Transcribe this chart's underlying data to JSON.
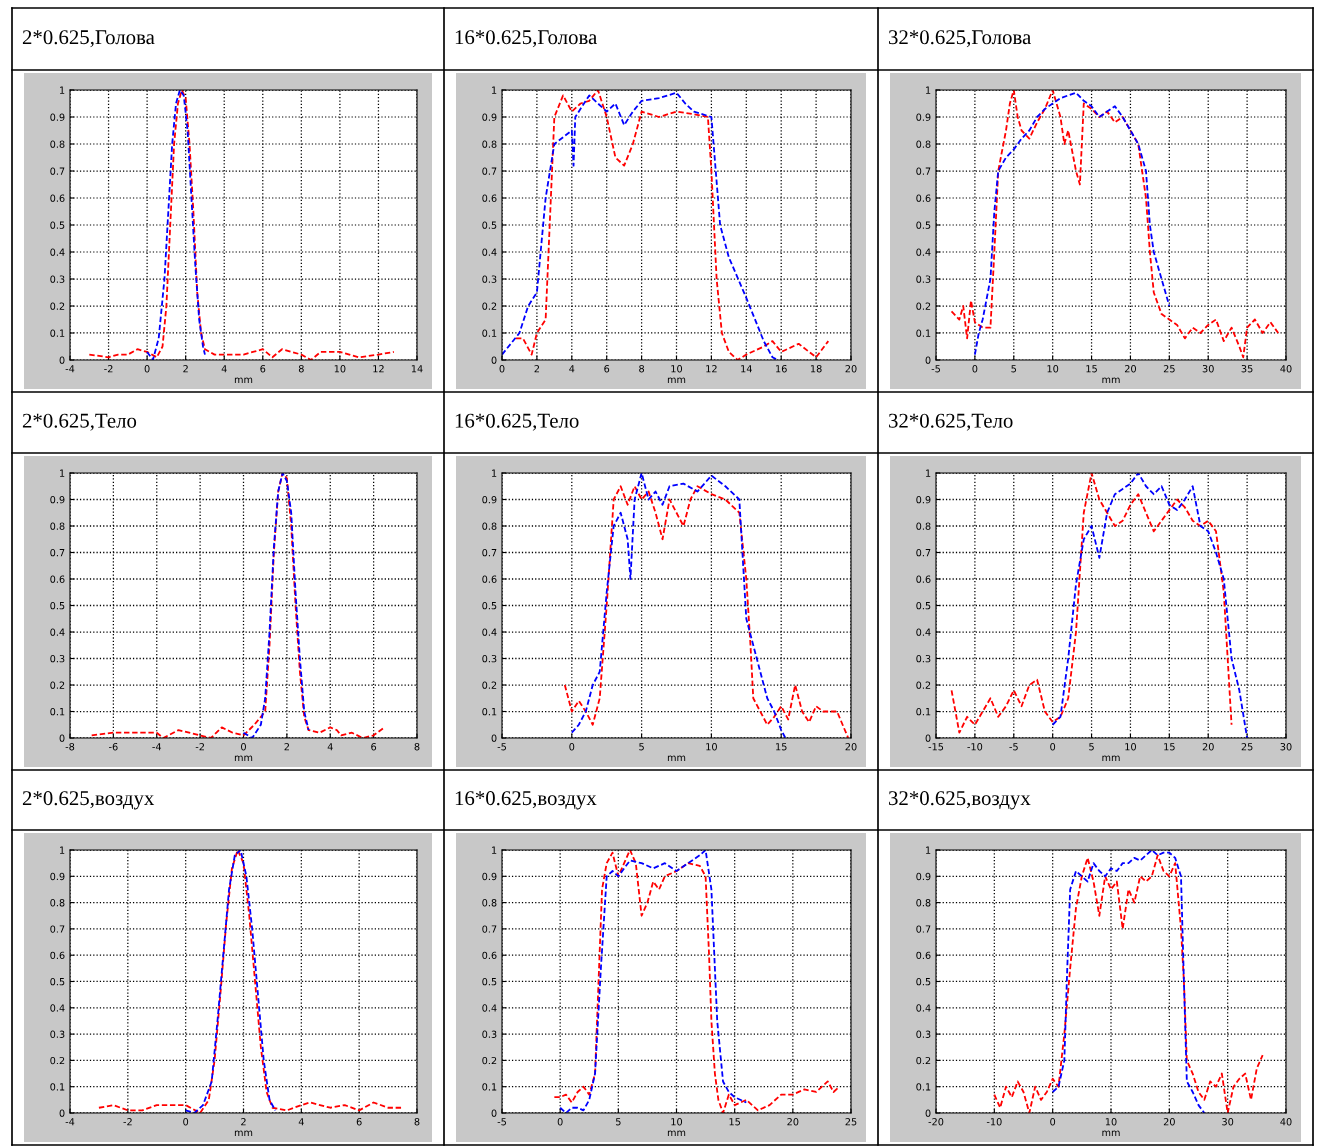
{
  "chart_data": [
    {
      "type": "line",
      "title": "2*0.625,Голова",
      "xlabel": "mm",
      "xlim": [
        -4,
        14
      ],
      "xticks": [
        -4,
        -2,
        0,
        2,
        4,
        6,
        8,
        10,
        12,
        14
      ],
      "ylim": [
        0,
        1
      ],
      "yticks": [
        0,
        0.1,
        0.2,
        0.3,
        0.4,
        0.5,
        0.6,
        0.7,
        0.8,
        0.9,
        1
      ],
      "grid": true,
      "line_style": "dashed",
      "series": [
        {
          "color": "#ff0000",
          "x": [
            -3,
            -2,
            -1.5,
            -1,
            -0.5,
            0,
            0.5,
            0.8,
            1,
            1.2,
            1.4,
            1.6,
            1.8,
            2,
            2.2,
            2.4,
            2.6,
            2.8,
            3,
            3.5,
            4,
            5,
            6,
            6.5,
            7,
            8,
            8.5,
            9,
            10,
            11,
            12,
            12.8
          ],
          "values": [
            0.02,
            0.01,
            0.02,
            0.02,
            0.04,
            0.03,
            0.01,
            0.05,
            0.2,
            0.5,
            0.8,
            0.95,
            1,
            0.97,
            0.8,
            0.55,
            0.25,
            0.1,
            0.04,
            0.02,
            0.02,
            0.02,
            0.04,
            0.01,
            0.04,
            0.02,
            0,
            0.03,
            0.03,
            0.01,
            0.02,
            0.03
          ]
        },
        {
          "color": "#0000ff",
          "x": [
            0,
            0.3,
            0.6,
            0.9,
            1.1,
            1.3,
            1.5,
            1.7,
            1.9,
            2.1,
            2.3,
            2.5,
            2.7,
            2.9,
            3
          ],
          "values": [
            0.03,
            0,
            0.08,
            0.3,
            0.55,
            0.8,
            0.95,
            1,
            0.98,
            0.85,
            0.6,
            0.35,
            0.15,
            0.05,
            0.02
          ]
        }
      ]
    },
    {
      "type": "line",
      "title": "16*0.625,Голова",
      "xlabel": "mm",
      "xlim": [
        0,
        20
      ],
      "xticks": [
        0,
        2,
        4,
        6,
        8,
        10,
        12,
        14,
        16,
        18,
        20
      ],
      "ylim": [
        0,
        1
      ],
      "yticks": [
        0,
        0.1,
        0.2,
        0.3,
        0.4,
        0.5,
        0.6,
        0.7,
        0.8,
        0.9,
        1
      ],
      "grid": true,
      "line_style": "dashed",
      "series": [
        {
          "color": "#ff0000",
          "x": [
            0.8,
            1.2,
            1.7,
            2,
            2.5,
            3,
            3.5,
            4,
            4.5,
            5,
            5.5,
            6,
            6.5,
            7,
            7.5,
            8,
            9,
            10,
            11,
            11.8,
            12,
            12.3,
            12.6,
            13,
            13.5,
            14,
            15,
            15.5,
            16,
            17,
            18,
            18.7
          ],
          "values": [
            0.08,
            0.08,
            0.02,
            0.1,
            0.15,
            0.9,
            0.98,
            0.92,
            0.95,
            0.96,
            1,
            0.9,
            0.75,
            0.72,
            0.8,
            0.92,
            0.9,
            0.92,
            0.91,
            0.9,
            0.7,
            0.3,
            0.1,
            0.03,
            0,
            0.02,
            0.05,
            0.07,
            0.03,
            0.06,
            0.01,
            0.07
          ]
        },
        {
          "color": "#0000ff",
          "x": [
            0,
            0.5,
            1,
            1.5,
            2,
            2.5,
            3,
            4,
            4.1,
            4.2,
            5,
            6,
            6.5,
            7,
            7.5,
            8,
            9,
            10,
            10.5,
            11,
            12,
            12.5,
            13,
            14,
            15,
            15.5,
            15.8
          ],
          "values": [
            0.02,
            0.06,
            0.1,
            0.2,
            0.25,
            0.6,
            0.8,
            0.85,
            0.72,
            0.9,
            0.98,
            0.92,
            0.95,
            0.87,
            0.92,
            0.96,
            0.97,
            0.99,
            0.95,
            0.92,
            0.9,
            0.5,
            0.38,
            0.23,
            0.07,
            0.01,
            0
          ]
        }
      ]
    },
    {
      "type": "line",
      "title": "32*0.625,Голова",
      "xlabel": "mm",
      "xlim": [
        -5,
        40
      ],
      "xticks": [
        -5,
        0,
        5,
        10,
        15,
        20,
        25,
        30,
        35,
        40
      ],
      "ylim": [
        0,
        1
      ],
      "yticks": [
        0,
        0.1,
        0.2,
        0.3,
        0.4,
        0.5,
        0.6,
        0.7,
        0.8,
        0.9,
        1
      ],
      "grid": true,
      "line_style": "dashed",
      "series": [
        {
          "color": "#ff0000",
          "x": [
            -3,
            -2,
            -1.5,
            -1,
            -0.5,
            0,
            1,
            2,
            2.5,
            3,
            4,
            4.5,
            5,
            5.5,
            6,
            7,
            8,
            9,
            10,
            11,
            11.5,
            12,
            13,
            13.5,
            14,
            15,
            16,
            17,
            18,
            19,
            20,
            21,
            22,
            22.5,
            23,
            24,
            25,
            26,
            27,
            28,
            29,
            30,
            31,
            32,
            33,
            34,
            34.5,
            35,
            36,
            37,
            38,
            39
          ],
          "values": [
            0.18,
            0.15,
            0.2,
            0.08,
            0.22,
            0.14,
            0.12,
            0.12,
            0.4,
            0.7,
            0.85,
            0.95,
            1,
            0.9,
            0.85,
            0.82,
            0.88,
            0.93,
            1,
            0.9,
            0.8,
            0.85,
            0.7,
            0.65,
            0.95,
            0.93,
            0.9,
            0.92,
            0.88,
            0.9,
            0.85,
            0.8,
            0.6,
            0.4,
            0.25,
            0.17,
            0.15,
            0.13,
            0.08,
            0.12,
            0.1,
            0.13,
            0.15,
            0.07,
            0.12,
            0.05,
            0.01,
            0.12,
            0.15,
            0.1,
            0.14,
            0.1
          ]
        },
        {
          "color": "#0000ff",
          "x": [
            0,
            0.5,
            1,
            2,
            2.5,
            3,
            4,
            5,
            6,
            7,
            8,
            9,
            10,
            11,
            12,
            13,
            14,
            15,
            16,
            17,
            18,
            19,
            20,
            21,
            22,
            22.5,
            23,
            24,
            25
          ],
          "values": [
            0.02,
            0.1,
            0.15,
            0.3,
            0.55,
            0.7,
            0.75,
            0.78,
            0.82,
            0.85,
            0.9,
            0.93,
            0.95,
            0.97,
            0.98,
            0.99,
            0.96,
            0.94,
            0.9,
            0.92,
            0.94,
            0.9,
            0.85,
            0.8,
            0.7,
            0.5,
            0.4,
            0.3,
            0.2
          ]
        }
      ]
    },
    {
      "type": "line",
      "title": "2*0.625,Тело",
      "xlabel": "mm",
      "xlim": [
        -8,
        8
      ],
      "xticks": [
        -8,
        -6,
        -4,
        -2,
        0,
        2,
        4,
        6,
        8
      ],
      "ylim": [
        0,
        1
      ],
      "yticks": [
        0,
        0.1,
        0.2,
        0.3,
        0.4,
        0.5,
        0.6,
        0.7,
        0.8,
        0.9,
        1
      ],
      "grid": true,
      "line_style": "dashed",
      "series": [
        {
          "color": "#ff0000",
          "x": [
            -7,
            -6,
            -5,
            -4,
            -3.7,
            -3,
            -2,
            -1.5,
            -1,
            -0.5,
            0,
            0.5,
            1,
            1.2,
            1.4,
            1.6,
            1.8,
            2,
            2.2,
            2.4,
            2.6,
            2.8,
            3,
            3.5,
            4,
            4.3,
            4.5,
            5,
            5.5,
            6,
            6.5
          ],
          "values": [
            0.01,
            0.02,
            0.02,
            0.02,
            0,
            0.03,
            0.01,
            0,
            0.04,
            0.02,
            0.01,
            0.05,
            0.1,
            0.35,
            0.7,
            0.93,
            1,
            0.98,
            0.8,
            0.5,
            0.25,
            0.08,
            0.03,
            0.02,
            0.04,
            0.03,
            0.01,
            0.02,
            0,
            0.01,
            0.04
          ]
        },
        {
          "color": "#0000ff",
          "x": [
            0,
            0.4,
            0.8,
            1,
            1.2,
            1.4,
            1.6,
            1.8,
            2,
            2.2,
            2.4,
            2.6,
            2.8,
            3
          ],
          "values": [
            0.02,
            0,
            0.05,
            0.15,
            0.4,
            0.72,
            0.93,
            1,
            0.97,
            0.85,
            0.55,
            0.3,
            0.1,
            0.03
          ]
        }
      ]
    },
    {
      "type": "line",
      "title": "16*0.625,Тело",
      "xlabel": "mm",
      "xlim": [
        -5,
        20
      ],
      "xticks": [
        -5,
        0,
        5,
        10,
        15,
        20
      ],
      "ylim": [
        0,
        1
      ],
      "yticks": [
        0,
        0.1,
        0.2,
        0.3,
        0.4,
        0.5,
        0.6,
        0.7,
        0.8,
        0.9,
        1
      ],
      "grid": true,
      "line_style": "dashed",
      "series": [
        {
          "color": "#ff0000",
          "x": [
            -0.5,
            0,
            0.5,
            1,
            1.5,
            2,
            2.5,
            3,
            3.5,
            4,
            4.5,
            5,
            5.5,
            6,
            6.5,
            7,
            7.5,
            8,
            8.5,
            9,
            10,
            11,
            12,
            12.5,
            12.8,
            13,
            13.5,
            14,
            14.5,
            15,
            15.5,
            16,
            16.5,
            17,
            17.5,
            18,
            19,
            19.8
          ],
          "values": [
            0.2,
            0.1,
            0.14,
            0.1,
            0.05,
            0.15,
            0.5,
            0.9,
            0.95,
            0.88,
            0.95,
            0.9,
            0.93,
            0.85,
            0.75,
            0.9,
            0.85,
            0.8,
            0.9,
            0.95,
            0.92,
            0.9,
            0.85,
            0.6,
            0.35,
            0.15,
            0.1,
            0.05,
            0.08,
            0.12,
            0.07,
            0.2,
            0.1,
            0.06,
            0.12,
            0.1,
            0.1,
            0
          ]
        },
        {
          "color": "#0000ff",
          "x": [
            0,
            0.5,
            1,
            1.5,
            2,
            2.5,
            3,
            3.5,
            4,
            4.2,
            4.5,
            5,
            5.5,
            6,
            6.5,
            7,
            8,
            9,
            10,
            11,
            12,
            12.5,
            13,
            13.5,
            14,
            14.5,
            15,
            15.3
          ],
          "values": [
            0.02,
            0.05,
            0.1,
            0.2,
            0.25,
            0.55,
            0.8,
            0.85,
            0.75,
            0.6,
            0.9,
            1,
            0.9,
            0.93,
            0.88,
            0.95,
            0.96,
            0.93,
            0.99,
            0.95,
            0.9,
            0.45,
            0.35,
            0.25,
            0.15,
            0.1,
            0.03,
            0
          ]
        }
      ]
    },
    {
      "type": "line",
      "title": "32*0.625,Тело",
      "xlabel": "mm",
      "xlim": [
        -15,
        30
      ],
      "xticks": [
        -15,
        -10,
        -5,
        0,
        5,
        10,
        15,
        20,
        25,
        30
      ],
      "ylim": [
        0,
        1
      ],
      "yticks": [
        0,
        0.1,
        0.2,
        0.3,
        0.4,
        0.5,
        0.6,
        0.7,
        0.8,
        0.9,
        1
      ],
      "grid": true,
      "line_style": "dashed",
      "series": [
        {
          "color": "#ff0000",
          "x": [
            -13,
            -12,
            -11,
            -10,
            -9,
            -8,
            -7,
            -6,
            -5,
            -4,
            -3,
            -2,
            -1,
            0,
            1,
            2,
            3,
            4,
            5,
            6,
            7,
            8,
            9,
            10,
            11,
            12,
            13,
            14,
            15,
            16,
            17,
            18,
            19,
            20,
            21,
            22,
            23
          ],
          "values": [
            0.18,
            0.02,
            0.08,
            0.05,
            0.1,
            0.15,
            0.08,
            0.12,
            0.18,
            0.12,
            0.2,
            0.22,
            0.1,
            0.06,
            0.08,
            0.15,
            0.4,
            0.85,
            1,
            0.9,
            0.85,
            0.8,
            0.82,
            0.88,
            0.92,
            0.85,
            0.78,
            0.82,
            0.86,
            0.9,
            0.87,
            0.82,
            0.8,
            0.82,
            0.78,
            0.55,
            0.05
          ]
        },
        {
          "color": "#0000ff",
          "x": [
            0,
            1,
            2,
            3,
            4,
            5,
            6,
            7,
            8,
            9,
            10,
            11,
            12,
            13,
            14,
            15,
            16,
            17,
            18,
            19,
            20,
            21,
            22,
            23,
            24,
            25
          ],
          "values": [
            0.05,
            0.08,
            0.3,
            0.58,
            0.75,
            0.8,
            0.68,
            0.85,
            0.92,
            0.94,
            0.96,
            1,
            0.95,
            0.92,
            0.95,
            0.88,
            0.86,
            0.9,
            0.95,
            0.8,
            0.78,
            0.7,
            0.6,
            0.3,
            0.18,
            0
          ]
        }
      ]
    },
    {
      "type": "line",
      "title": "2*0.625,воздух",
      "xlabel": "mm",
      "xlim": [
        -4,
        8
      ],
      "xticks": [
        -4,
        -2,
        0,
        2,
        4,
        6,
        8
      ],
      "ylim": [
        0,
        1
      ],
      "yticks": [
        0,
        0.1,
        0.2,
        0.3,
        0.4,
        0.5,
        0.6,
        0.7,
        0.8,
        0.9,
        1
      ],
      "grid": true,
      "line_style": "dashed",
      "series": [
        {
          "color": "#ff0000",
          "x": [
            -3,
            -2.5,
            -2,
            -1.5,
            -1,
            -0.5,
            0,
            0.5,
            0.8,
            1,
            1.2,
            1.4,
            1.6,
            1.8,
            2,
            2.2,
            2.4,
            2.6,
            2.8,
            3,
            3.5,
            4,
            4.3,
            5,
            5.5,
            6,
            6.5,
            7,
            7.5
          ],
          "values": [
            0.02,
            0.03,
            0.01,
            0.01,
            0.03,
            0.03,
            0.03,
            0,
            0.05,
            0.2,
            0.45,
            0.72,
            0.93,
            1,
            0.95,
            0.75,
            0.5,
            0.25,
            0.08,
            0.02,
            0.01,
            0.03,
            0.04,
            0.02,
            0.03,
            0.01,
            0.04,
            0.02,
            0.02
          ]
        },
        {
          "color": "#0000ff",
          "x": [
            0,
            0.3,
            0.6,
            0.9,
            1.1,
            1.3,
            1.5,
            1.7,
            1.9,
            2.1,
            2.3,
            2.5,
            2.7,
            2.9,
            3.1
          ],
          "values": [
            0.01,
            0,
            0.03,
            0.12,
            0.35,
            0.6,
            0.85,
            0.98,
            1,
            0.9,
            0.7,
            0.45,
            0.2,
            0.05,
            0.01
          ]
        }
      ]
    },
    {
      "type": "line",
      "title": "16*0.625,воздух",
      "xlabel": "mm",
      "xlim": [
        -5,
        25
      ],
      "xticks": [
        -5,
        0,
        5,
        10,
        15,
        20,
        25
      ],
      "ylim": [
        0,
        1
      ],
      "yticks": [
        0,
        0.1,
        0.2,
        0.3,
        0.4,
        0.5,
        0.6,
        0.7,
        0.8,
        0.9,
        1
      ],
      "grid": true,
      "line_style": "dashed",
      "series": [
        {
          "color": "#ff0000",
          "x": [
            -0.5,
            0,
            0.5,
            1,
            1.5,
            2,
            2.5,
            3,
            3.3,
            3.6,
            4,
            4.5,
            5,
            5.5,
            6,
            6.5,
            7,
            7.5,
            8,
            8.5,
            9,
            10,
            11,
            12,
            12.5,
            12.8,
            13,
            13.3,
            13.6,
            14,
            14.5,
            15,
            16,
            17,
            18,
            19,
            20,
            21,
            22,
            23,
            23.5,
            24
          ],
          "values": [
            0.06,
            0.06,
            0.07,
            0.04,
            0.08,
            0.1,
            0.07,
            0.15,
            0.5,
            0.85,
            0.95,
            0.99,
            0.9,
            0.95,
            1,
            0.95,
            0.75,
            0.8,
            0.88,
            0.85,
            0.9,
            0.92,
            0.95,
            0.94,
            0.9,
            0.6,
            0.35,
            0.15,
            0.05,
            0,
            0.07,
            0.03,
            0.05,
            0.01,
            0.03,
            0.07,
            0.07,
            0.09,
            0.08,
            0.12,
            0.08,
            0.1
          ]
        },
        {
          "color": "#0000ff",
          "x": [
            0,
            0.5,
            1,
            1.5,
            2,
            2.5,
            3,
            3.5,
            4,
            4.5,
            5,
            6,
            7,
            8,
            9,
            10,
            11,
            12,
            12.5,
            13,
            13.5,
            14,
            14.5,
            15,
            16
          ],
          "values": [
            0.02,
            0,
            0.02,
            0.02,
            0.01,
            0.05,
            0.15,
            0.55,
            0.9,
            0.92,
            0.9,
            0.96,
            0.95,
            0.93,
            0.95,
            0.92,
            0.95,
            0.98,
            1,
            0.85,
            0.35,
            0.12,
            0.08,
            0.06,
            0.04
          ]
        }
      ]
    },
    {
      "type": "line",
      "title": "32*0.625,воздух",
      "xlabel": "mm",
      "xlim": [
        -20,
        40
      ],
      "xticks": [
        -20,
        -10,
        0,
        10,
        20,
        30,
        40
      ],
      "ylim": [
        0,
        1
      ],
      "yticks": [
        0,
        0.1,
        0.2,
        0.3,
        0.4,
        0.5,
        0.6,
        0.7,
        0.8,
        0.9,
        1
      ],
      "grid": true,
      "line_style": "dashed",
      "series": [
        {
          "color": "#ff0000",
          "x": [
            -10,
            -9,
            -8,
            -7,
            -6,
            -5,
            -4,
            -3,
            -2,
            -1,
            0,
            1,
            2,
            3,
            4,
            5,
            6,
            7,
            8,
            9,
            10,
            11,
            12,
            13,
            14,
            15,
            16,
            17,
            18,
            19,
            20,
            21,
            22,
            22.5,
            23,
            24,
            25,
            26,
            27,
            28,
            29,
            30,
            31,
            32,
            33,
            34,
            35,
            36
          ],
          "values": [
            0.07,
            0.02,
            0.1,
            0.06,
            0.12,
            0.08,
            0,
            0.1,
            0.05,
            0.08,
            0.13,
            0.1,
            0.3,
            0.55,
            0.78,
            0.9,
            0.97,
            0.88,
            0.75,
            0.9,
            0.85,
            0.88,
            0.7,
            0.85,
            0.8,
            0.9,
            0.88,
            0.9,
            0.98,
            0.92,
            0.9,
            0.95,
            0.7,
            0.5,
            0.2,
            0.15,
            0.08,
            0.05,
            0.12,
            0.1,
            0.15,
            0,
            0.1,
            0.13,
            0.15,
            0.05,
            0.17,
            0.22
          ]
        },
        {
          "color": "#0000ff",
          "x": [
            0,
            1,
            2,
            2.5,
            3,
            4,
            5,
            6,
            7,
            8,
            9,
            10,
            11,
            12,
            13,
            14,
            15,
            16,
            17,
            18,
            19,
            20,
            21,
            22,
            22.5,
            23,
            24,
            25,
            26
          ],
          "values": [
            0.08,
            0.1,
            0.2,
            0.55,
            0.85,
            0.92,
            0.9,
            0.88,
            0.95,
            0.92,
            0.9,
            0.93,
            0.92,
            0.95,
            0.95,
            0.97,
            0.96,
            0.98,
            1,
            0.98,
            0.99,
            0.99,
            0.97,
            0.9,
            0.5,
            0.12,
            0.08,
            0.03,
            0
          ]
        }
      ]
    }
  ]
}
